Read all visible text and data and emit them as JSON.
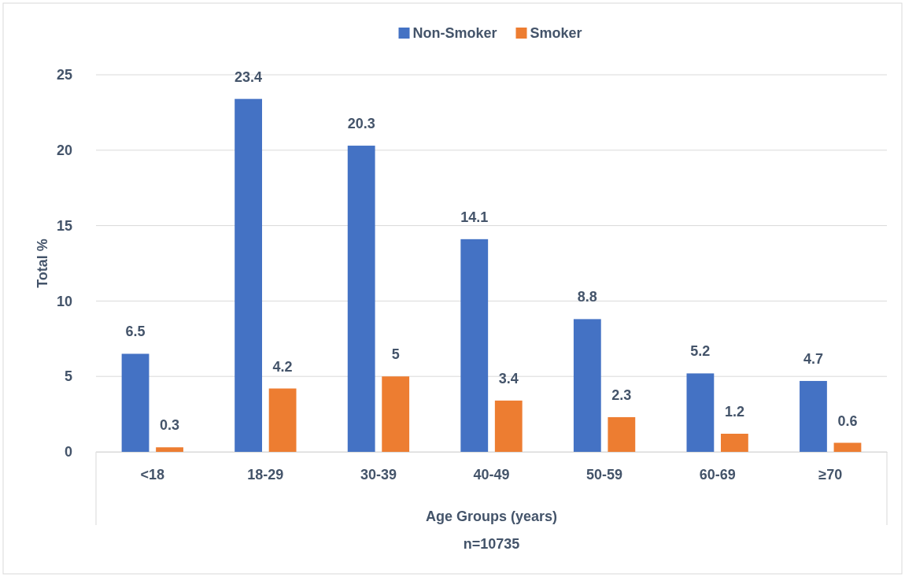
{
  "chart_data": {
    "type": "bar",
    "categories": [
      "<18",
      "18-29",
      "30-39",
      "40-49",
      "50-59",
      "60-69",
      "≥70"
    ],
    "series": [
      {
        "name": "Non-Smoker",
        "color": "#4472c4",
        "values": [
          6.5,
          23.4,
          20.3,
          14.1,
          8.8,
          5.2,
          4.7
        ]
      },
      {
        "name": "Smoker",
        "color": "#ed7d31",
        "values": [
          0.3,
          4.2,
          5,
          3.4,
          2.3,
          1.2,
          0.6
        ]
      }
    ],
    "ylim": [
      0,
      25
    ],
    "yticks": [
      0,
      5,
      10,
      15,
      20,
      25
    ],
    "grid": "y",
    "legend": "top",
    "data_labels": true,
    "xlabel": "Age Groups (years)",
    "ylabel": "Total %",
    "annotations": [
      "n=10735"
    ]
  }
}
